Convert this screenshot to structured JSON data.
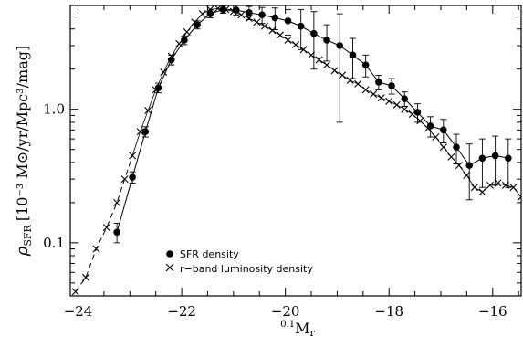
{
  "chart_data": {
    "type": "line",
    "xlabel_prefix": "0.1",
    "xlabel_main": "M",
    "xlabel_sub": "r",
    "ylabel_rho": "ρ",
    "ylabel_sub": "SFR",
    "ylabel_units": "[10⁻³ M⊙/yr/Mpc³/mag]",
    "xlim": [
      -24.15,
      -15.45
    ],
    "ylim": [
      0.04,
      6.0
    ],
    "yscale": "log",
    "xaxis_reversed": false,
    "xticks": [
      -24,
      -22,
      -20,
      -18,
      -16
    ],
    "xtick_labels": [
      "−24",
      "−22",
      "−20",
      "−18",
      "−16"
    ],
    "yticks": [
      0.1,
      1.0
    ],
    "ytick_labels": [
      "0.1",
      "1.0"
    ],
    "grid": false,
    "legend_position": "bottom-left",
    "series": [
      {
        "name": "SFR density",
        "marker": "filled-circle",
        "line": "solid",
        "x": [
          -23.25,
          -22.95,
          -22.7,
          -22.45,
          -22.2,
          -21.95,
          -21.7,
          -21.45,
          -21.2,
          -20.95,
          -20.7,
          -20.45,
          -20.2,
          -19.95,
          -19.7,
          -19.45,
          -19.2,
          -18.95,
          -18.7,
          -18.45,
          -18.2,
          -17.95,
          -17.7,
          -17.45,
          -17.2,
          -16.95,
          -16.7,
          -16.45,
          -16.2,
          -15.95,
          -15.7
        ],
        "y": [
          0.12,
          0.31,
          0.68,
          1.45,
          2.35,
          3.3,
          4.3,
          5.2,
          5.6,
          5.55,
          5.3,
          5.1,
          4.85,
          4.6,
          4.2,
          3.7,
          3.3,
          3.0,
          2.55,
          2.15,
          1.6,
          1.5,
          1.2,
          0.95,
          0.75,
          0.7,
          0.52,
          0.38,
          0.43,
          0.45,
          0.43
        ],
        "yerr_upper": [
          0.14,
          0.34,
          0.74,
          1.57,
          2.55,
          3.55,
          4.6,
          5.55,
          5.95,
          6.0,
          5.9,
          5.8,
          5.75,
          5.6,
          5.6,
          5.4,
          4.3,
          5.2,
          3.4,
          2.55,
          1.8,
          1.7,
          1.35,
          1.1,
          0.88,
          0.84,
          0.65,
          0.55,
          0.6,
          0.63,
          0.6
        ]
      },
      {
        "name": "r−band luminosity density",
        "marker": "x",
        "line": "dashed",
        "x": [
          -24.05,
          -23.85,
          -23.65,
          -23.45,
          -23.25,
          -23.1,
          -22.95,
          -22.8,
          -22.65,
          -22.5,
          -22.35,
          -22.2,
          -22.05,
          -21.9,
          -21.75,
          -21.6,
          -21.45,
          -21.3,
          -21.15,
          -21.0,
          -20.85,
          -20.7,
          -20.55,
          -20.4,
          -20.25,
          -20.1,
          -19.95,
          -19.8,
          -19.65,
          -19.5,
          -19.35,
          -19.2,
          -19.05,
          -18.9,
          -18.75,
          -18.6,
          -18.45,
          -18.3,
          -18.15,
          -18.0,
          -17.85,
          -17.7,
          -17.55,
          -17.4,
          -17.25,
          -17.1,
          -16.95,
          -16.8,
          -16.65,
          -16.5,
          -16.35,
          -16.2,
          -16.05,
          -15.9,
          -15.75,
          -15.6,
          -15.45
        ],
        "y": [
          0.043,
          0.055,
          0.09,
          0.13,
          0.2,
          0.3,
          0.45,
          0.68,
          0.98,
          1.4,
          1.9,
          2.5,
          3.1,
          3.8,
          4.5,
          5.2,
          5.6,
          5.7,
          5.6,
          5.4,
          5.1,
          4.8,
          4.5,
          4.2,
          3.9,
          3.6,
          3.3,
          3.05,
          2.8,
          2.55,
          2.35,
          2.15,
          1.95,
          1.8,
          1.65,
          1.55,
          1.4,
          1.3,
          1.22,
          1.15,
          1.08,
          1.0,
          0.92,
          0.82,
          0.72,
          0.62,
          0.52,
          0.44,
          0.38,
          0.32,
          0.26,
          0.24,
          0.27,
          0.28,
          0.27,
          0.26,
          0.22
        ]
      }
    ]
  }
}
